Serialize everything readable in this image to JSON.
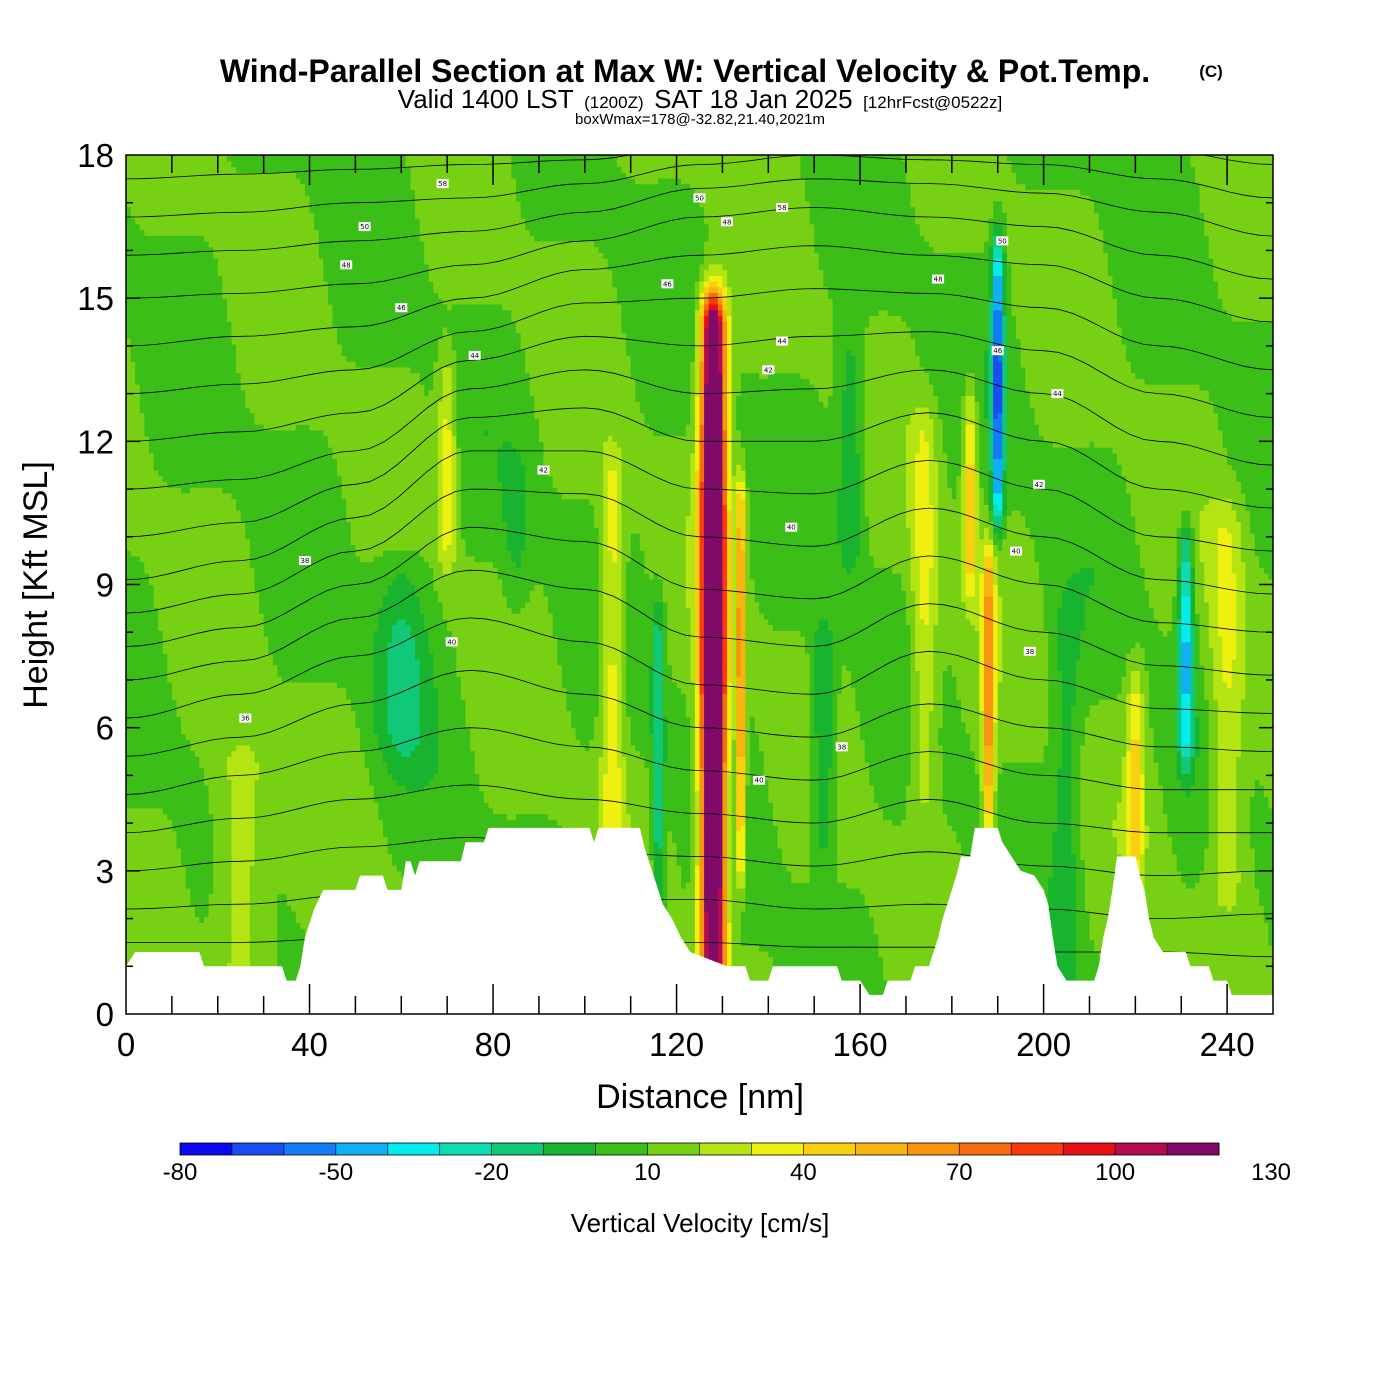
{
  "header": {
    "title": "Wind-Parallel Section at Max W: Vertical Velocity & Pot.Temp.",
    "copyright_mark": "(C)",
    "subtitle_valid": "Valid 1400 LST",
    "subtitle_z": "(1200Z)",
    "subtitle_date": "SAT 18 Jan 2025",
    "subtitle_fcst": "[12hrFcst@0522z]",
    "subtitle_box": "boxWmax=178@-32.82,21.40,2021m"
  },
  "chart_data": {
    "type": "heatmap",
    "title": "Wind-Parallel Section at Max W: Vertical Velocity & Pot.Temp.",
    "xlabel": "Distance [nm]",
    "ylabel": "Height [Kft MSL]",
    "xlim": [
      0,
      250
    ],
    "ylim": [
      0,
      18
    ],
    "x_ticks": [
      0,
      40,
      80,
      120,
      160,
      200,
      240
    ],
    "y_ticks": [
      0,
      3,
      6,
      9,
      12,
      15,
      18
    ],
    "x_tick_labels": [
      "0",
      "40",
      "80",
      "120",
      "160",
      "200",
      "240"
    ],
    "y_tick_labels": [
      "0",
      "3",
      "6",
      "9",
      "12",
      "15",
      "18"
    ],
    "colorbar": {
      "label": "Vertical Velocity [cm/s]",
      "min": -80,
      "step": 10,
      "tick_values": [
        -80,
        -50,
        -20,
        10,
        40,
        70,
        100,
        130
      ],
      "tick_labels": [
        "-80",
        "-50",
        "-20",
        "10",
        "40",
        "70",
        "100",
        "130"
      ],
      "colors": [
        "#0a0af0",
        "#1a4ef2",
        "#127cf6",
        "#10b0f6",
        "#04ecec",
        "#10dcb4",
        "#10c878",
        "#18b430",
        "#3cbe18",
        "#78d014",
        "#b4e412",
        "#f0f010",
        "#f8d010",
        "#f8b410",
        "#f89410",
        "#f86c10",
        "#f83c10",
        "#e81018",
        "#b40c50",
        "#800a68"
      ]
    },
    "background_velocity_cm_s": 10,
    "velocity_cells": [
      {
        "x": 128,
        "z_low": 1.2,
        "z_high": 14.3,
        "sx": 2.6,
        "peak": 178
      },
      {
        "x": 134,
        "z_low": 3.5,
        "z_high": 10.5,
        "sx": 1.0,
        "peak": 60
      },
      {
        "x": 116,
        "z_low": 2.5,
        "z_high": 8.0,
        "sx": 1.3,
        "peak": -32
      },
      {
        "x": 106,
        "z_low": 4.0,
        "z_high": 11.0,
        "sx": 2.5,
        "peak": 30
      },
      {
        "x": 190,
        "z_low": 11.0,
        "z_high": 15.5,
        "sx": 1.3,
        "peak": -75
      },
      {
        "x": 184,
        "z_low": 9.5,
        "z_high": 12.5,
        "sx": 1.5,
        "peak": 40
      },
      {
        "x": 188,
        "z_low": 4.5,
        "z_high": 9.0,
        "sx": 1.3,
        "peak": 60
      },
      {
        "x": 231,
        "z_low": 6.0,
        "z_high": 9.5,
        "sx": 1.6,
        "peak": -55
      },
      {
        "x": 220,
        "z_low": 3.2,
        "z_high": 6.5,
        "sx": 1.8,
        "peak": 32
      },
      {
        "x": 152,
        "z_low": 4.0,
        "z_high": 7.5,
        "sx": 2.5,
        "peak": -28
      },
      {
        "x": 60,
        "z_low": 6.0,
        "z_high": 9.0,
        "sx": 6.0,
        "peak": -22
      },
      {
        "x": 85,
        "z_low": 9.0,
        "z_high": 11.0,
        "sx": 3.0,
        "peak": -12
      },
      {
        "x": 158,
        "z_low": 10.0,
        "z_high": 13.5,
        "sx": 3.0,
        "peak": -22
      },
      {
        "x": 70,
        "z_low": 10.0,
        "z_high": 13.0,
        "sx": 2.0,
        "peak": 28
      },
      {
        "x": 240,
        "z_low": 3.0,
        "z_high": 10.0,
        "sx": 4.0,
        "peak": 24
      },
      {
        "x": 25,
        "z_low": 1.0,
        "z_high": 5.0,
        "sx": 6.0,
        "peak": 22
      },
      {
        "x": 174,
        "z_low": 5.0,
        "z_high": 12.0,
        "sx": 3.0,
        "peak": 25
      },
      {
        "x": 205,
        "z_low": 1.0,
        "z_high": 8.0,
        "sx": 3.0,
        "peak": -15
      }
    ],
    "terrain_kft": [
      [
        0,
        1.0
      ],
      [
        2,
        1.3
      ],
      [
        16,
        1.3
      ],
      [
        17,
        1.0
      ],
      [
        34,
        1.0
      ],
      [
        35,
        0.7
      ],
      [
        37,
        0.7
      ],
      [
        38,
        1.0
      ],
      [
        39,
        1.6
      ],
      [
        41,
        2.2
      ],
      [
        43,
        2.6
      ],
      [
        50,
        2.6
      ],
      [
        51,
        2.9
      ],
      [
        56,
        2.9
      ],
      [
        57,
        2.6
      ],
      [
        60,
        2.6
      ],
      [
        61,
        3.2
      ],
      [
        62,
        3.2
      ],
      [
        63,
        2.9
      ],
      [
        64,
        3.2
      ],
      [
        73,
        3.2
      ],
      [
        74,
        3.6
      ],
      [
        78,
        3.6
      ],
      [
        79,
        3.9
      ],
      [
        101,
        3.9
      ],
      [
        102,
        3.6
      ],
      [
        103,
        3.9
      ],
      [
        112,
        3.9
      ],
      [
        113,
        3.5
      ],
      [
        115,
        2.9
      ],
      [
        116,
        2.6
      ],
      [
        117,
        2.3
      ],
      [
        119,
        2.0
      ],
      [
        121,
        1.6
      ],
      [
        123,
        1.3
      ],
      [
        131,
        1.0
      ],
      [
        135,
        1.0
      ],
      [
        136,
        0.7
      ],
      [
        140,
        0.7
      ],
      [
        141,
        1.0
      ],
      [
        155,
        1.0
      ],
      [
        156,
        0.7
      ],
      [
        160,
        0.7
      ],
      [
        162,
        0.4
      ],
      [
        165,
        0.4
      ],
      [
        166,
        0.7
      ],
      [
        171,
        0.7
      ],
      [
        172,
        1.0
      ],
      [
        175,
        1.0
      ],
      [
        176,
        1.3
      ],
      [
        177,
        1.6
      ],
      [
        178,
        2.0
      ],
      [
        179,
        2.3
      ],
      [
        180,
        2.6
      ],
      [
        181,
        2.9
      ],
      [
        182,
        3.3
      ],
      [
        184,
        3.3
      ],
      [
        185,
        3.9
      ],
      [
        190,
        3.9
      ],
      [
        191,
        3.6
      ],
      [
        193,
        3.3
      ],
      [
        195,
        3.0
      ],
      [
        198,
        2.9
      ],
      [
        200,
        2.6
      ],
      [
        201,
        2.3
      ],
      [
        202,
        1.6
      ],
      [
        203,
        1.0
      ],
      [
        205,
        0.7
      ],
      [
        211,
        0.7
      ],
      [
        212,
        1.0
      ],
      [
        213,
        1.6
      ],
      [
        214,
        2.0
      ],
      [
        215,
        2.6
      ],
      [
        216,
        3.3
      ],
      [
        220,
        3.3
      ],
      [
        221,
        2.9
      ],
      [
        222,
        2.6
      ],
      [
        223,
        2.0
      ],
      [
        224,
        1.6
      ],
      [
        226,
        1.3
      ],
      [
        231,
        1.3
      ],
      [
        232,
        1.0
      ],
      [
        236,
        1.0
      ],
      [
        237,
        0.7
      ],
      [
        240,
        0.7
      ],
      [
        241,
        0.4
      ],
      [
        244,
        0.4
      ],
      [
        250,
        0.4
      ]
    ],
    "theta_contours_kft": [
      [
        1.5,
        1.5,
        1.6,
        1.6,
        1.5,
        1.5,
        1.4,
        1.4,
        1.3,
        1.3,
        1.2
      ],
      [
        2.2,
        2.3,
        2.5,
        2.6,
        2.4,
        2.4,
        2.2,
        2.3,
        2.2,
        2.0,
        2.1
      ],
      [
        3.0,
        3.2,
        3.5,
        3.7,
        3.4,
        3.3,
        3.1,
        3.4,
        3.1,
        2.9,
        3.0
      ],
      [
        3.8,
        4.1,
        4.5,
        4.8,
        4.5,
        4.2,
        4.0,
        4.5,
        4.0,
        3.8,
        3.8
      ],
      [
        4.6,
        5.0,
        5.5,
        6.0,
        5.6,
        5.1,
        4.9,
        5.5,
        5.0,
        4.7,
        4.7
      ],
      [
        5.4,
        5.8,
        6.5,
        7.2,
        6.7,
        6.0,
        5.8,
        6.5,
        6.0,
        5.6,
        5.5
      ],
      [
        6.2,
        6.7,
        7.5,
        8.3,
        7.8,
        6.9,
        6.7,
        7.6,
        7.0,
        6.4,
        6.3
      ],
      [
        7.0,
        7.4,
        8.3,
        9.3,
        8.9,
        7.9,
        7.7,
        8.6,
        8.0,
        7.3,
        7.1
      ],
      [
        7.7,
        8.1,
        9.0,
        10.2,
        9.9,
        8.9,
        8.7,
        9.6,
        9.0,
        8.2,
        8.0
      ],
      [
        8.4,
        8.8,
        9.7,
        11.0,
        10.9,
        10.0,
        9.8,
        10.6,
        10.0,
        9.1,
        8.8
      ],
      [
        9.1,
        9.5,
        10.4,
        11.8,
        11.8,
        11.0,
        10.9,
        11.6,
        11.0,
        10.0,
        9.7
      ],
      [
        10.0,
        10.3,
        11.1,
        12.5,
        12.7,
        12.0,
        12.0,
        12.6,
        12.0,
        11.0,
        10.6
      ],
      [
        11.0,
        11.2,
        11.8,
        13.1,
        13.5,
        13.0,
        13.1,
        13.5,
        13.0,
        12.0,
        11.5
      ],
      [
        12.0,
        12.2,
        12.6,
        13.7,
        14.2,
        14.0,
        14.2,
        14.3,
        13.9,
        13.0,
        12.5
      ],
      [
        13.0,
        13.2,
        13.5,
        14.3,
        14.9,
        15.0,
        15.2,
        15.1,
        14.8,
        14.0,
        13.5
      ],
      [
        14.0,
        14.2,
        14.4,
        15.0,
        15.6,
        15.9,
        16.1,
        15.9,
        15.7,
        15.0,
        14.5
      ],
      [
        15.0,
        15.1,
        15.3,
        15.7,
        16.2,
        16.7,
        16.9,
        16.7,
        16.5,
        15.9,
        15.4
      ],
      [
        15.9,
        16.0,
        16.2,
        16.4,
        16.8,
        17.3,
        17.5,
        17.4,
        17.2,
        16.8,
        16.3
      ],
      [
        16.7,
        16.8,
        17.0,
        17.1,
        17.4,
        17.8,
        18.0,
        17.9,
        17.8,
        17.5,
        17.1
      ],
      [
        17.5,
        17.6,
        17.7,
        17.8,
        17.9,
        18.2,
        18.4,
        18.3,
        18.3,
        18.1,
        17.8
      ]
    ],
    "theta_contour_x_nm": [
      0,
      25,
      50,
      75,
      100,
      125,
      150,
      175,
      200,
      225,
      250
    ],
    "theta_labels": [
      {
        "text": "36",
        "x": 26,
        "z": 6.2
      },
      {
        "text": "40",
        "x": 71,
        "z": 7.8
      },
      {
        "text": "38",
        "x": 39,
        "z": 9.5
      },
      {
        "text": "42",
        "x": 91,
        "z": 11.4
      },
      {
        "text": "44",
        "x": 76,
        "z": 13.8
      },
      {
        "text": "46",
        "x": 60,
        "z": 14.8
      },
      {
        "text": "48",
        "x": 48,
        "z": 15.7
      },
      {
        "text": "50",
        "x": 52,
        "z": 16.5
      },
      {
        "text": "58",
        "x": 69,
        "z": 17.4
      },
      {
        "text": "50",
        "x": 125,
        "z": 17.1
      },
      {
        "text": "48",
        "x": 131,
        "z": 16.6
      },
      {
        "text": "58",
        "x": 143,
        "z": 16.9
      },
      {
        "text": "46",
        "x": 118,
        "z": 15.3
      },
      {
        "text": "44",
        "x": 143,
        "z": 14.1
      },
      {
        "text": "42",
        "x": 140,
        "z": 13.5
      },
      {
        "text": "40",
        "x": 145,
        "z": 10.2
      },
      {
        "text": "38",
        "x": 156,
        "z": 5.6
      },
      {
        "text": "40",
        "x": 138,
        "z": 4.9
      },
      {
        "text": "48",
        "x": 177,
        "z": 15.4
      },
      {
        "text": "50",
        "x": 191,
        "z": 16.2
      },
      {
        "text": "46",
        "x": 190,
        "z": 13.9
      },
      {
        "text": "44",
        "x": 203,
        "z": 13.0
      },
      {
        "text": "42",
        "x": 199,
        "z": 11.1
      },
      {
        "text": "40",
        "x": 194,
        "z": 9.7
      },
      {
        "text": "38",
        "x": 197,
        "z": 7.6
      }
    ]
  }
}
